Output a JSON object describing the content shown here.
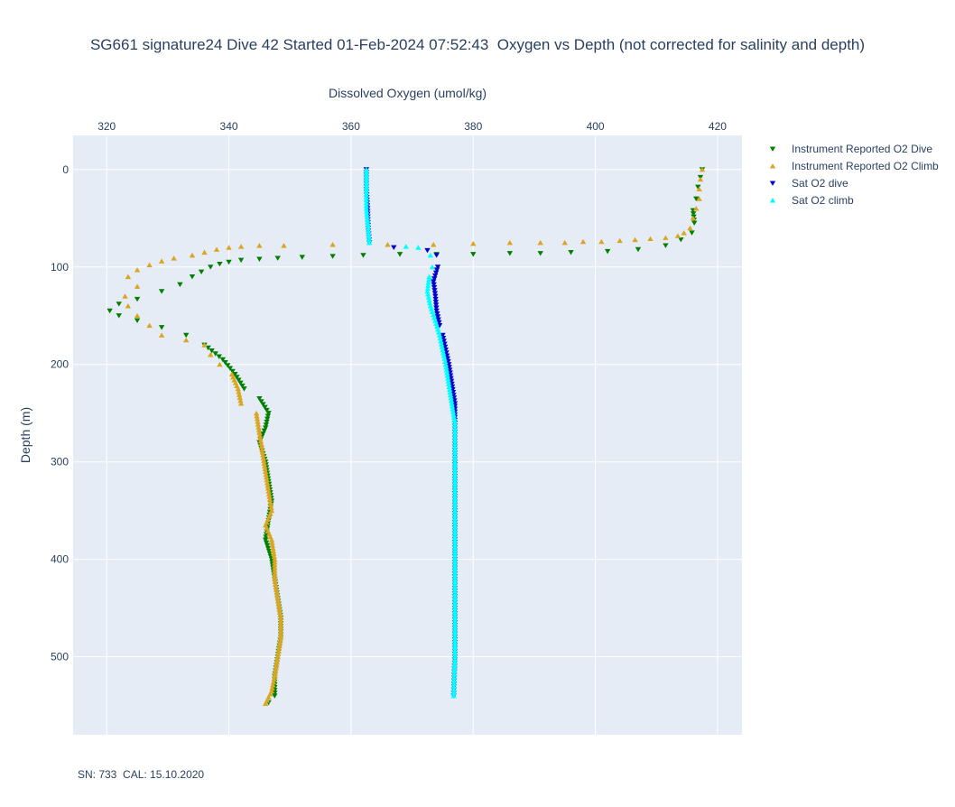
{
  "chart_data": {
    "type": "scatter",
    "title": "SG661 signature24 Dive 42 Started 01-Feb-2024 07:52:43  Oxygen vs Depth (not corrected for salinity and depth)",
    "xlabel": "Dissolved Oxygen (umol/kg)",
    "ylabel": "Depth (m)",
    "x_axis_position": "top",
    "xlim": [
      314.5,
      424.0
    ],
    "ylim": [
      580,
      -35
    ],
    "y_reversed": true,
    "x_ticks": [
      320,
      340,
      360,
      380,
      400,
      420
    ],
    "x_tick_labels": [
      "320",
      "340",
      "360",
      "380",
      "400",
      "420"
    ],
    "y_ticks": [
      0,
      100,
      200,
      300,
      400,
      500
    ],
    "y_tick_labels": [
      "0",
      "100",
      "200",
      "300",
      "400",
      "500"
    ],
    "grid": true,
    "legend_position": "top-right",
    "footnote": "SN: 733  CAL: 15.10.2020",
    "series": [
      {
        "name": "Instrument Reported O2 Dive",
        "color": "#008000",
        "marker": "triangle-down",
        "points": [
          [
            417.5,
            0
          ],
          [
            417.2,
            8
          ],
          [
            416.8,
            18
          ],
          [
            416.5,
            30
          ],
          [
            416.0,
            42
          ],
          [
            416.2,
            55
          ],
          [
            415.8,
            65
          ],
          [
            414.0,
            72
          ],
          [
            411.5,
            78
          ],
          [
            407.0,
            82
          ],
          [
            402.0,
            84
          ],
          [
            396.0,
            85
          ],
          [
            391.0,
            86
          ],
          [
            386.0,
            86
          ],
          [
            380.0,
            87
          ],
          [
            374.0,
            87
          ],
          [
            368.0,
            87
          ],
          [
            362.0,
            88
          ],
          [
            357.0,
            89
          ],
          [
            352.0,
            90
          ],
          [
            348.0,
            91
          ],
          [
            345.0,
            92
          ],
          [
            342.0,
            93
          ],
          [
            340.0,
            95
          ],
          [
            338.5,
            97
          ],
          [
            337.0,
            100
          ],
          [
            335.5,
            105
          ],
          [
            334.0,
            110
          ],
          [
            332.0,
            118
          ],
          [
            329.0,
            125
          ],
          [
            325.0,
            133
          ],
          [
            322.0,
            138
          ],
          [
            320.5,
            145
          ],
          [
            322.0,
            150
          ],
          [
            325.0,
            155
          ],
          [
            329.0,
            162
          ],
          [
            333.0,
            170
          ],
          [
            336.0,
            180
          ],
          [
            339.0,
            195
          ],
          [
            341.0,
            210
          ],
          [
            342.5,
            225
          ],
          [
            345.0,
            235
          ],
          [
            346.5,
            250
          ],
          [
            346.0,
            265
          ],
          [
            345.0,
            280
          ],
          [
            346.0,
            300
          ],
          [
            346.5,
            320
          ],
          [
            347.0,
            340
          ],
          [
            346.5,
            360
          ],
          [
            346.0,
            380
          ],
          [
            347.0,
            400
          ],
          [
            347.5,
            420
          ],
          [
            348.0,
            440
          ],
          [
            348.5,
            460
          ],
          [
            348.5,
            480
          ],
          [
            348.0,
            500
          ],
          [
            347.5,
            520
          ],
          [
            347.5,
            540
          ],
          [
            346.5,
            547
          ]
        ]
      },
      {
        "name": "Instrument Reported O2 Climb",
        "color": "#DAA520",
        "marker": "triangle-up",
        "points": [
          [
            346.0,
            548
          ],
          [
            347.0,
            535
          ],
          [
            347.5,
            520
          ],
          [
            348.0,
            500
          ],
          [
            348.5,
            480
          ],
          [
            348.5,
            460
          ],
          [
            348.0,
            440
          ],
          [
            347.5,
            420
          ],
          [
            347.5,
            400
          ],
          [
            347.0,
            380
          ],
          [
            346.0,
            365
          ],
          [
            347.0,
            350
          ],
          [
            346.5,
            330
          ],
          [
            346.0,
            310
          ],
          [
            345.5,
            290
          ],
          [
            345.0,
            270
          ],
          [
            344.5,
            250
          ],
          [
            342.0,
            240
          ],
          [
            341.5,
            225
          ],
          [
            340.5,
            210
          ],
          [
            338.5,
            200
          ],
          [
            337.0,
            190
          ],
          [
            336.0,
            180
          ],
          [
            333.0,
            175
          ],
          [
            329.0,
            170
          ],
          [
            327.0,
            160
          ],
          [
            325.0,
            150
          ],
          [
            323.5,
            140
          ],
          [
            323.0,
            130
          ],
          [
            325.0,
            120
          ],
          [
            323.5,
            110
          ],
          [
            325.0,
            103
          ],
          [
            327.0,
            98
          ],
          [
            329.0,
            94
          ],
          [
            331.0,
            91
          ],
          [
            334.0,
            88
          ],
          [
            336.0,
            85
          ],
          [
            338.0,
            82
          ],
          [
            340.0,
            80
          ],
          [
            342.0,
            79
          ],
          [
            345.0,
            78
          ],
          [
            349.0,
            78
          ],
          [
            357.0,
            77
          ],
          [
            366.0,
            77
          ],
          [
            373.5,
            77
          ],
          [
            380.0,
            76
          ],
          [
            386.0,
            75
          ],
          [
            391.0,
            75
          ],
          [
            395.0,
            75
          ],
          [
            398.0,
            74
          ],
          [
            401.0,
            74
          ],
          [
            404.0,
            73
          ],
          [
            406.5,
            72
          ],
          [
            409.0,
            71
          ],
          [
            411.5,
            70
          ],
          [
            413.5,
            68
          ],
          [
            414.5,
            65
          ],
          [
            415.5,
            60
          ],
          [
            416.0,
            50
          ],
          [
            416.5,
            40
          ],
          [
            417.0,
            30
          ],
          [
            417.0,
            20
          ],
          [
            417.2,
            10
          ],
          [
            417.5,
            0
          ]
        ]
      },
      {
        "name": "Sat O2 dive",
        "color": "#0000CD",
        "marker": "triangle-down",
        "points": [
          [
            362.5,
            0
          ],
          [
            362.5,
            20
          ],
          [
            362.7,
            40
          ],
          [
            362.8,
            60
          ],
          [
            363.0,
            75
          ],
          [
            367.0,
            80
          ],
          [
            372.5,
            83
          ],
          [
            374.0,
            88
          ],
          [
            374.2,
            100
          ],
          [
            373.5,
            115
          ],
          [
            373.8,
            130
          ],
          [
            374.0,
            145
          ],
          [
            374.5,
            160
          ],
          [
            375.0,
            170
          ],
          [
            375.5,
            185
          ],
          [
            376.0,
            200
          ],
          [
            376.5,
            220
          ],
          [
            377.0,
            240
          ],
          [
            377.0,
            260
          ],
          [
            377.0,
            300
          ],
          [
            377.0,
            350
          ],
          [
            377.0,
            400
          ],
          [
            377.0,
            450
          ],
          [
            377.0,
            500
          ],
          [
            376.8,
            540
          ]
        ]
      },
      {
        "name": "Sat O2 climb",
        "color": "#00FFFF",
        "marker": "triangle-up",
        "points": [
          [
            376.8,
            540
          ],
          [
            377.0,
            500
          ],
          [
            377.0,
            450
          ],
          [
            377.0,
            400
          ],
          [
            377.0,
            350
          ],
          [
            377.0,
            300
          ],
          [
            377.0,
            260
          ],
          [
            376.5,
            240
          ],
          [
            376.0,
            220
          ],
          [
            375.5,
            200
          ],
          [
            375.0,
            185
          ],
          [
            374.5,
            170
          ],
          [
            373.8,
            155
          ],
          [
            373.0,
            140
          ],
          [
            372.5,
            125
          ],
          [
            372.8,
            110
          ],
          [
            373.3,
            100
          ],
          [
            373.0,
            88
          ],
          [
            371.0,
            80
          ],
          [
            369.0,
            79
          ],
          [
            363.0,
            75
          ],
          [
            362.8,
            60
          ],
          [
            362.5,
            40
          ],
          [
            362.5,
            20
          ],
          [
            362.5,
            0
          ]
        ]
      }
    ]
  }
}
